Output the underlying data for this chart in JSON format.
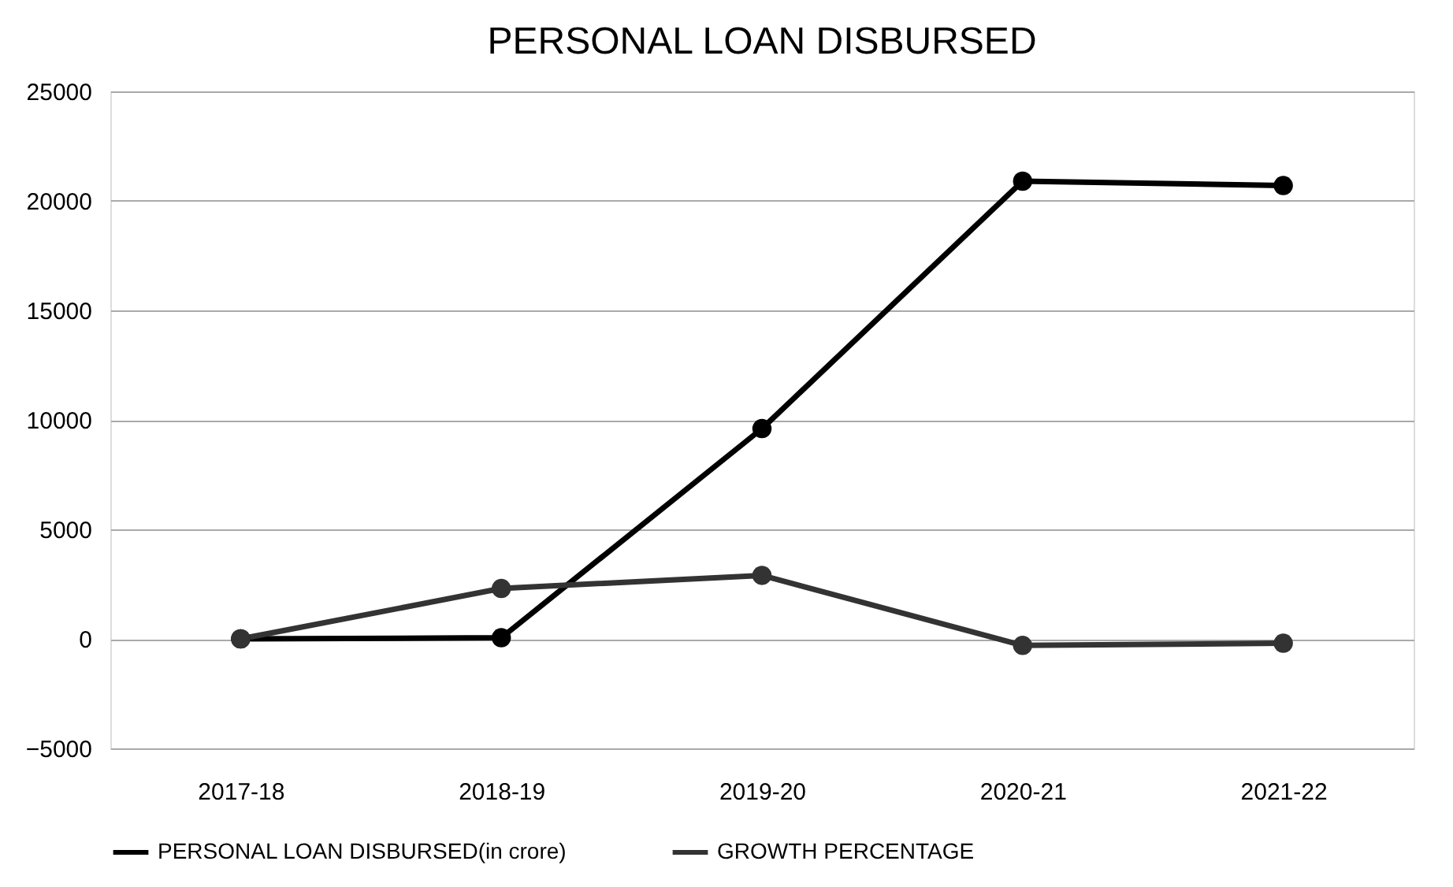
{
  "chart_data": {
    "type": "line",
    "title": "PERSONAL LOAN DISBURSED",
    "categories": [
      "2017-18",
      "2018-19",
      "2019-20",
      "2020-21",
      "2021-22"
    ],
    "series": [
      {
        "name": "PERSONAL LOAN DISBURSED(in crore)",
        "color": "#000000",
        "values": [
          0,
          50,
          9600,
          20900,
          20700
        ]
      },
      {
        "name": "GROWTH PERCENTAGE",
        "color": "#333333",
        "values": [
          0,
          2300,
          2900,
          -300,
          -200
        ]
      }
    ],
    "ylim": [
      -5000,
      25000
    ],
    "yticks": [
      -5000,
      0,
      5000,
      10000,
      15000,
      20000,
      25000
    ],
    "grid": "y",
    "legend": "bottom",
    "marker": "circle",
    "line_style": "solid"
  }
}
